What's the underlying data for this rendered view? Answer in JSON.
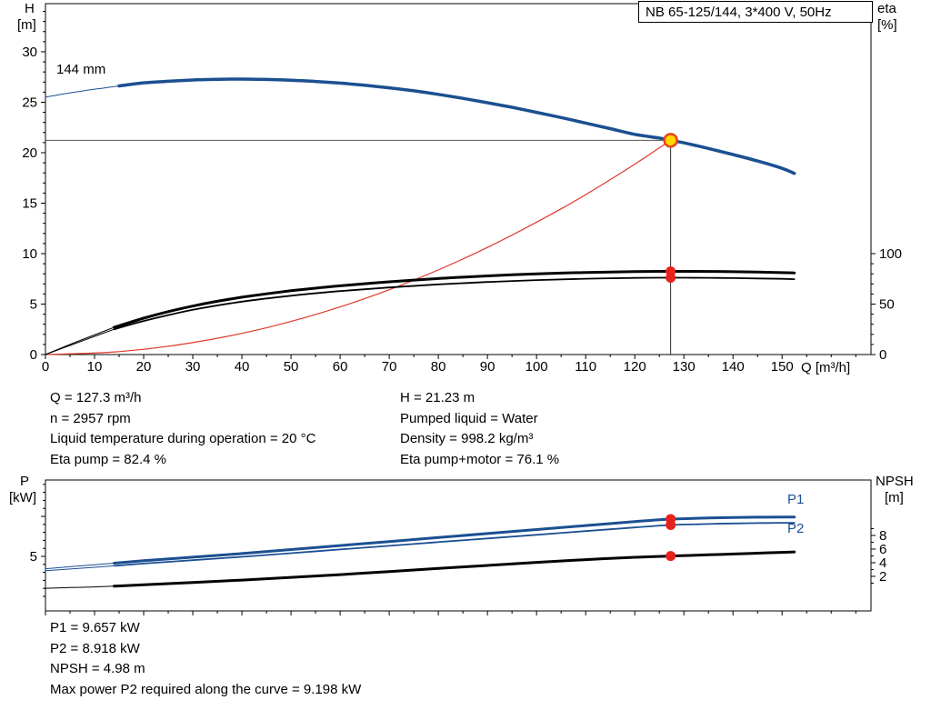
{
  "colors": {
    "curve_blue": "#1b4f91",
    "curve_red": "#e0392b",
    "curve_black": "#000000",
    "duty_fill": "#ffd800",
    "duty_ring": "#e8411f",
    "marker_red": "#e8211c",
    "label_blue": "#1b4f91"
  },
  "details_top": {
    "left": [
      "Q = 127.3 m³/h",
      "n = 2957 rpm",
      "Liquid temperature during operation = 20 °C",
      "Eta pump = 82.4 %"
    ],
    "right": [
      "H = 21.23 m",
      "Pumped liquid = Water",
      "Density = 998.2 kg/m³",
      "Eta pump+motor = 76.1 %"
    ]
  },
  "details_bottom": [
    "P1 = 9.657 kW",
    "P2 = 8.918 kW",
    "NPSH = 4.98 m",
    "Max power P2 required along the curve = 9.198 kW"
  ],
  "chart_data": [
    {
      "id": "qh-eta-chart",
      "type": "line",
      "title": "NB 65-125/144, 3*400 V, 50Hz",
      "curve_label": "144 mm",
      "xlabel": "Q [m³/h]",
      "ylabel_left_lines": [
        "H",
        "[m]"
      ],
      "ylabel_right_lines": [
        "eta",
        "[%]"
      ],
      "xlim": [
        0,
        168.1
      ],
      "ylim_left": [
        0,
        34.77
      ],
      "ylim_right": [
        0,
        347.7
      ],
      "x_ticks": [
        0,
        10,
        20,
        30,
        40,
        50,
        60,
        70,
        80,
        90,
        100,
        110,
        120,
        130,
        140,
        150
      ],
      "x_tick_labels": true,
      "x_minor_step": 5,
      "y_ticks_left": [
        0,
        5,
        10,
        15,
        20,
        25,
        30
      ],
      "y_minor_left_step": 1,
      "y_ticks_right": [
        0,
        50,
        100
      ],
      "y_minor_right_step": 10,
      "y_minor_right_max": 100,
      "series": [
        {
          "name": "head-curve-lead",
          "axis": "left",
          "color": "#1b4f91",
          "width": 1,
          "points": [
            [
              0,
              25.5
            ],
            [
              4,
              25.85
            ],
            [
              8,
              26.15
            ],
            [
              12,
              26.42
            ],
            [
              15,
              26.62
            ]
          ]
        },
        {
          "name": "head-curve-144mm",
          "axis": "left",
          "color": "#1b4f91",
          "width": 3.5,
          "points": [
            [
              15,
              26.62
            ],
            [
              20,
              26.92
            ],
            [
              25,
              27.08
            ],
            [
              30,
              27.2
            ],
            [
              35,
              27.27
            ],
            [
              40,
              27.29
            ],
            [
              45,
              27.26
            ],
            [
              50,
              27.18
            ],
            [
              55,
              27.06
            ],
            [
              60,
              26.9
            ],
            [
              65,
              26.68
            ],
            [
              70,
              26.43
            ],
            [
              75,
              26.13
            ],
            [
              80,
              25.78
            ],
            [
              85,
              25.38
            ],
            [
              90,
              24.95
            ],
            [
              95,
              24.5
            ],
            [
              100,
              24.0
            ],
            [
              105,
              23.48
            ],
            [
              110,
              22.93
            ],
            [
              115,
              22.38
            ],
            [
              120,
              21.82
            ],
            [
              125,
              21.45
            ],
            [
              127.3,
              21.23
            ],
            [
              130,
              20.98
            ],
            [
              135,
              20.42
            ],
            [
              140,
              19.82
            ],
            [
              145,
              19.18
            ],
            [
              150,
              18.45
            ],
            [
              152.5,
              17.95
            ]
          ]
        },
        {
          "name": "system-curve",
          "axis": "left",
          "color": "#e0392b",
          "width": 1.2,
          "points": [
            [
              0,
              0
            ],
            [
              15,
              0.29
            ],
            [
              30,
              1.18
            ],
            [
              45,
              2.65
            ],
            [
              60,
              4.72
            ],
            [
              75,
              7.37
            ],
            [
              90,
              10.61
            ],
            [
              105,
              14.44
            ],
            [
              115,
              17.33
            ],
            [
              120,
              18.86
            ],
            [
              127.3,
              21.23
            ]
          ]
        },
        {
          "name": "eta-pump-lead",
          "axis": "right",
          "color": "#000000",
          "width": 1,
          "points": [
            [
              0,
              0
            ],
            [
              5,
              10
            ],
            [
              10,
              19.5
            ],
            [
              14,
              27
            ]
          ]
        },
        {
          "name": "eta-pump-curve",
          "axis": "right",
          "color": "#000000",
          "width": 3,
          "points": [
            [
              14,
              27
            ],
            [
              20,
              36
            ],
            [
              25,
              42.5
            ],
            [
              30,
              48
            ],
            [
              35,
              52.8
            ],
            [
              40,
              56.8
            ],
            [
              45,
              60.2
            ],
            [
              50,
              63.2
            ],
            [
              55,
              65.8
            ],
            [
              60,
              68.1
            ],
            [
              65,
              70.2
            ],
            [
              70,
              72.1
            ],
            [
              75,
              73.8
            ],
            [
              80,
              75.3
            ],
            [
              85,
              76.7
            ],
            [
              90,
              77.9
            ],
            [
              95,
              79
            ],
            [
              100,
              79.9
            ],
            [
              105,
              80.7
            ],
            [
              110,
              81.3
            ],
            [
              115,
              81.8
            ],
            [
              120,
              82.2
            ],
            [
              125,
              82.4
            ],
            [
              130,
              82.4
            ],
            [
              135,
              82.3
            ],
            [
              140,
              82.1
            ],
            [
              145,
              81.7
            ],
            [
              150,
              81.2
            ],
            [
              152.5,
              80.9
            ]
          ]
        },
        {
          "name": "eta-pump-motor-lead",
          "axis": "right",
          "color": "#000000",
          "width": 1,
          "points": [
            [
              0,
              0
            ],
            [
              5,
              9
            ],
            [
              10,
              18
            ],
            [
              14,
              25
            ]
          ]
        },
        {
          "name": "eta-pump-motor-curve",
          "axis": "right",
          "color": "#000000",
          "width": 1.8,
          "points": [
            [
              14,
              25
            ],
            [
              20,
              33.2
            ],
            [
              30,
              44.3
            ],
            [
              40,
              52.4
            ],
            [
              50,
              58.3
            ],
            [
              60,
              62.9
            ],
            [
              70,
              66.5
            ],
            [
              80,
              69.5
            ],
            [
              90,
              71.9
            ],
            [
              100,
              73.8
            ],
            [
              110,
              75.1
            ],
            [
              120,
              75.9
            ],
            [
              127.3,
              76.1
            ],
            [
              135,
              76.0
            ],
            [
              140,
              75.8
            ],
            [
              145,
              75.4
            ],
            [
              150,
              75.0
            ],
            [
              152.5,
              74.7
            ]
          ]
        }
      ],
      "annotations": {
        "vline": {
          "x": 127.3,
          "to_value": 21.23
        },
        "hline": {
          "value": 21.23,
          "to_x": 127.3
        },
        "markers": [
          {
            "x": 127.3,
            "value": 21.23,
            "axis": "left",
            "style": "duty"
          },
          {
            "x": 127.3,
            "value": 82.4,
            "axis": "right",
            "style": "dot"
          },
          {
            "x": 127.3,
            "value": 76.1,
            "axis": "right",
            "style": "dot"
          }
        ]
      }
    },
    {
      "id": "power-npsh-chart",
      "type": "line",
      "ylabel_left_lines": [
        "P",
        "[kW]"
      ],
      "ylabel_right_lines": [
        "NPSH",
        "[m]"
      ],
      "series_labels": {
        "p1": "P1",
        "p2": "P2"
      },
      "xlim": [
        0,
        168.1
      ],
      "ylim_left": [
        -1.82,
        14.55
      ],
      "ylim_right": [
        -3.07,
        16.13
      ],
      "x_ticks": [
        0,
        10,
        20,
        30,
        40,
        50,
        60,
        70,
        80,
        90,
        100,
        110,
        120,
        130,
        140,
        150
      ],
      "x_tick_labels": false,
      "x_minor_step": 5,
      "y_ticks_left": [
        5,
        10
      ],
      "y_tick_labels_left": [
        5
      ],
      "y_minor_left_step": 1,
      "y_minor_left_min": 0,
      "y_minor_left_max": 14,
      "y_ticks_right": [
        2,
        4,
        6,
        8
      ],
      "y_minor_right_step": 1,
      "y_minor_right_min": 1,
      "y_minor_right_max": 9,
      "series": [
        {
          "name": "p1-lead",
          "axis": "left",
          "color": "#1b4f91",
          "width": 1,
          "points": [
            [
              0,
              3.45
            ],
            [
              5,
              3.7
            ],
            [
              10,
              3.95
            ],
            [
              14,
              4.15
            ]
          ]
        },
        {
          "name": "p1-curve",
          "axis": "left",
          "color": "#1b4f91",
          "width": 3,
          "points": [
            [
              14,
              4.15
            ],
            [
              20,
              4.45
            ],
            [
              30,
              4.9
            ],
            [
              40,
              5.35
            ],
            [
              50,
              5.85
            ],
            [
              60,
              6.35
            ],
            [
              70,
              6.85
            ],
            [
              80,
              7.35
            ],
            [
              90,
              7.85
            ],
            [
              100,
              8.35
            ],
            [
              110,
              8.85
            ],
            [
              120,
              9.35
            ],
            [
              127.3,
              9.657
            ],
            [
              135,
              9.8
            ],
            [
              140,
              9.86
            ],
            [
              145,
              9.9
            ],
            [
              150,
              9.92
            ],
            [
              152.5,
              9.92
            ]
          ]
        },
        {
          "name": "p2-lead",
          "axis": "left",
          "color": "#1b4f91",
          "width": 1,
          "points": [
            [
              0,
              3.2
            ],
            [
              5,
              3.42
            ],
            [
              10,
              3.64
            ],
            [
              14,
              3.82
            ]
          ]
        },
        {
          "name": "p2-curve",
          "axis": "left",
          "color": "#1b4f91",
          "width": 1.8,
          "points": [
            [
              14,
              3.82
            ],
            [
              20,
              4.1
            ],
            [
              30,
              4.52
            ],
            [
              40,
              4.94
            ],
            [
              50,
              5.4
            ],
            [
              60,
              5.86
            ],
            [
              70,
              6.32
            ],
            [
              80,
              6.78
            ],
            [
              90,
              7.24
            ],
            [
              100,
              7.7
            ],
            [
              110,
              8.16
            ],
            [
              120,
              8.62
            ],
            [
              127.3,
              8.918
            ],
            [
              135,
              9.05
            ],
            [
              140,
              9.12
            ],
            [
              145,
              9.16
            ],
            [
              150,
              9.19
            ],
            [
              152.5,
              9.2
            ]
          ]
        },
        {
          "name": "npsh-lead",
          "axis": "right",
          "color": "#000000",
          "width": 1,
          "points": [
            [
              0,
              0.25
            ],
            [
              5,
              0.35
            ],
            [
              10,
              0.45
            ],
            [
              14,
              0.55
            ]
          ]
        },
        {
          "name": "npsh-curve",
          "axis": "right",
          "color": "#000000",
          "width": 3,
          "points": [
            [
              14,
              0.55
            ],
            [
              20,
              0.75
            ],
            [
              30,
              1.1
            ],
            [
              40,
              1.45
            ],
            [
              50,
              1.85
            ],
            [
              60,
              2.25
            ],
            [
              70,
              2.7
            ],
            [
              80,
              3.15
            ],
            [
              90,
              3.6
            ],
            [
              100,
              4.05
            ],
            [
              110,
              4.45
            ],
            [
              120,
              4.8
            ],
            [
              127.3,
              4.98
            ],
            [
              135,
              5.15
            ],
            [
              140,
              5.28
            ],
            [
              145,
              5.4
            ],
            [
              150,
              5.52
            ],
            [
              152.5,
              5.58
            ]
          ]
        }
      ],
      "annotations": {
        "markers": [
          {
            "x": 127.3,
            "value": 9.657,
            "axis": "left",
            "style": "dot"
          },
          {
            "x": 127.3,
            "value": 8.918,
            "axis": "left",
            "style": "dot"
          },
          {
            "x": 127.3,
            "value": 4.98,
            "axis": "right",
            "style": "dot"
          }
        ]
      }
    }
  ]
}
